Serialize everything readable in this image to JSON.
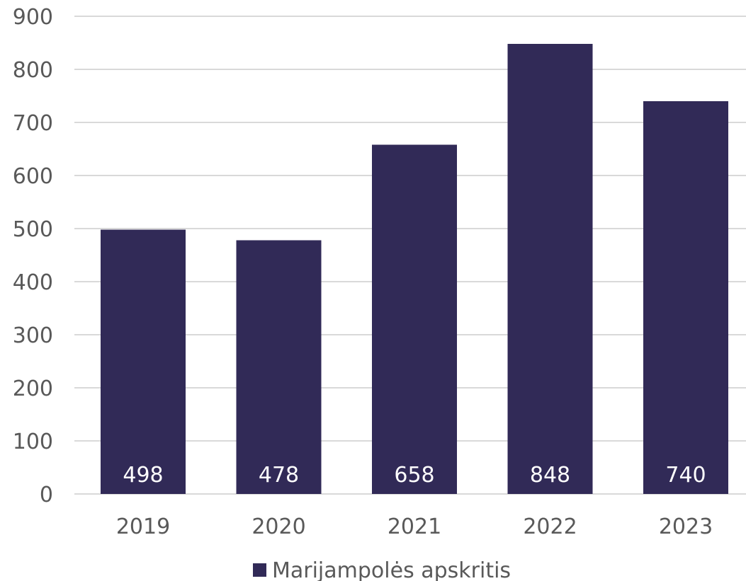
{
  "chart_data": {
    "type": "bar",
    "categories": [
      "2019",
      "2020",
      "2021",
      "2022",
      "2023"
    ],
    "series": [
      {
        "name": "Marijampolės apskritis",
        "values": [
          498,
          478,
          658,
          848,
          740
        ],
        "color": "#312a57"
      }
    ],
    "data_labels": [
      "498",
      "478",
      "658",
      "848",
      "740"
    ],
    "y_ticks": [
      "0",
      "100",
      "200",
      "300",
      "400",
      "500",
      "600",
      "700",
      "800",
      "900"
    ],
    "ylim": [
      0,
      900
    ],
    "grid": true,
    "legend_position": "bottom",
    "colors": {
      "bar": "#312a57",
      "grid": "#d9d9d9",
      "text": "#595959",
      "label": "#ffffff"
    }
  }
}
